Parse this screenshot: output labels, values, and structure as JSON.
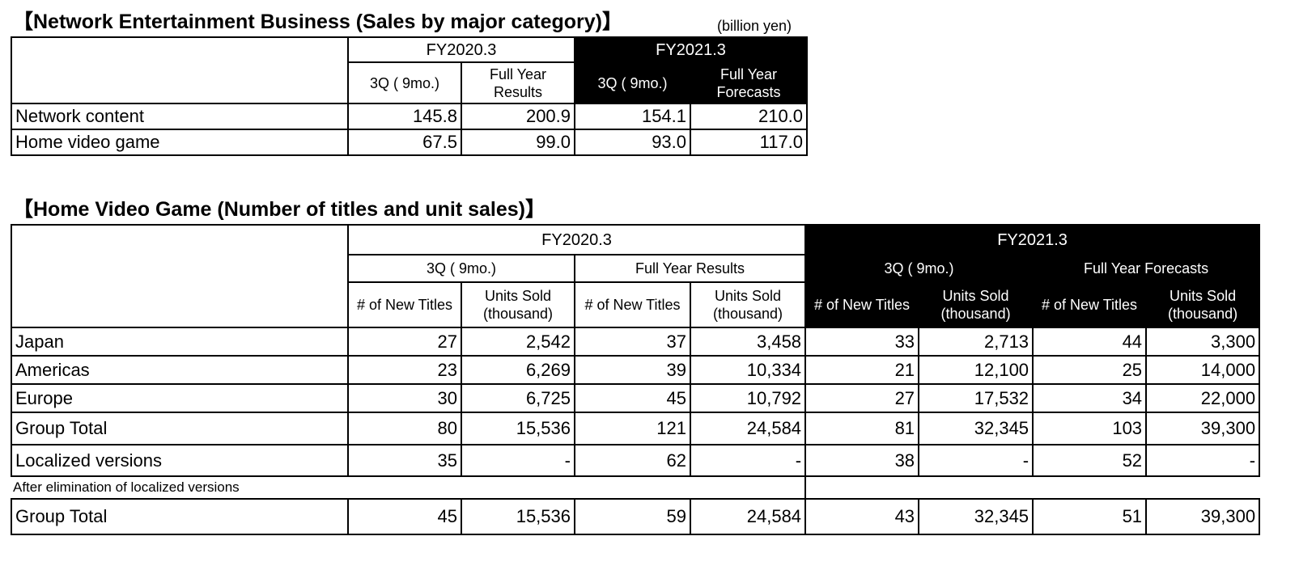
{
  "section1": {
    "title": "【Network Entertainment Business (Sales by major category)】",
    "unit": "(billion yen)",
    "fy_prev": "FY2020.3",
    "fy_curr": "FY2021.3",
    "col_3q": "3Q ( 9mo.)",
    "col_fy_results": "Full Year Results",
    "col_3q_curr": "3Q ( 9mo.)",
    "col_fy_forecasts": "Full Year Forecasts",
    "rows": [
      {
        "label": "Network content",
        "v": [
          "145.8",
          "200.9",
          "154.1",
          "210.0"
        ]
      },
      {
        "label": "Home video game",
        "v": [
          "67.5",
          "99.0",
          "93.0",
          "117.0"
        ]
      }
    ]
  },
  "section2": {
    "title": "【Home Video Game (Number of titles and unit sales)】",
    "fy_prev": "FY2020.3",
    "fy_curr": "FY2021.3",
    "sub": [
      "3Q ( 9mo.)",
      "Full Year Results",
      "3Q ( 9mo.)",
      "Full Year Forecasts"
    ],
    "col_titles": "# of New Titles",
    "col_units": "Units Sold (thousand)",
    "rows": [
      {
        "label": "Japan",
        "v": [
          "27",
          "2,542",
          "37",
          "3,458",
          "33",
          "2,713",
          "44",
          "3,300"
        ]
      },
      {
        "label": "Americas",
        "v": [
          "23",
          "6,269",
          "39",
          "10,334",
          "21",
          "12,100",
          "25",
          "14,000"
        ]
      },
      {
        "label": "Europe",
        "v": [
          "30",
          "6,725",
          "45",
          "10,792",
          "27",
          "17,532",
          "34",
          "22,000"
        ]
      },
      {
        "label": "Group Total",
        "v": [
          "80",
          "15,536",
          "121",
          "24,584",
          "81",
          "32,345",
          "103",
          "39,300"
        ]
      },
      {
        "label": "Localized versions",
        "v": [
          "35",
          "-",
          "62",
          "-",
          "38",
          "-",
          "52",
          "-"
        ]
      }
    ],
    "after_note": "After elimination of localized versions",
    "final_row": {
      "label": "Group Total",
      "v": [
        "45",
        "15,536",
        "59",
        "24,584",
        "43",
        "32,345",
        "51",
        "39,300"
      ]
    }
  }
}
